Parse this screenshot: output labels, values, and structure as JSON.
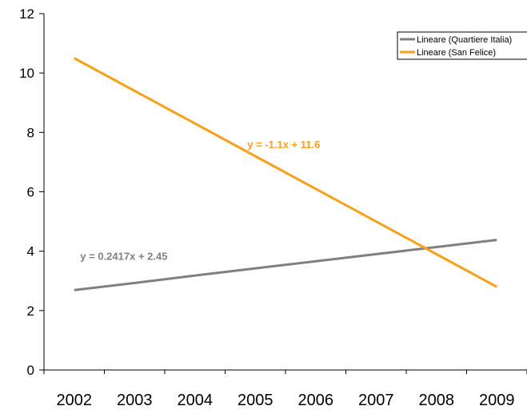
{
  "chart_data": {
    "type": "line",
    "categories": [
      "2002",
      "2003",
      "2004",
      "2005",
      "2006",
      "2007",
      "2008",
      "2009"
    ],
    "series": [
      {
        "name": "Lineare (Quartiere Italia)",
        "color": "#808080",
        "values": [
          2.69,
          2.93,
          3.18,
          3.42,
          3.66,
          3.9,
          4.14,
          4.38
        ],
        "equation": "y = 0.2417x + 2.45"
      },
      {
        "name": "Lineare (San Felice)",
        "color": "#F7A11A",
        "values": [
          10.5,
          9.4,
          8.3,
          7.2,
          6.1,
          5.0,
          3.9,
          2.8
        ],
        "equation": "y = -1.1x + 11.6"
      }
    ],
    "ylim": [
      0,
      12
    ],
    "yticks": [
      "0",
      "2",
      "4",
      "6",
      "8",
      "10",
      "12"
    ],
    "grid": false,
    "legend_position": "top-right"
  }
}
